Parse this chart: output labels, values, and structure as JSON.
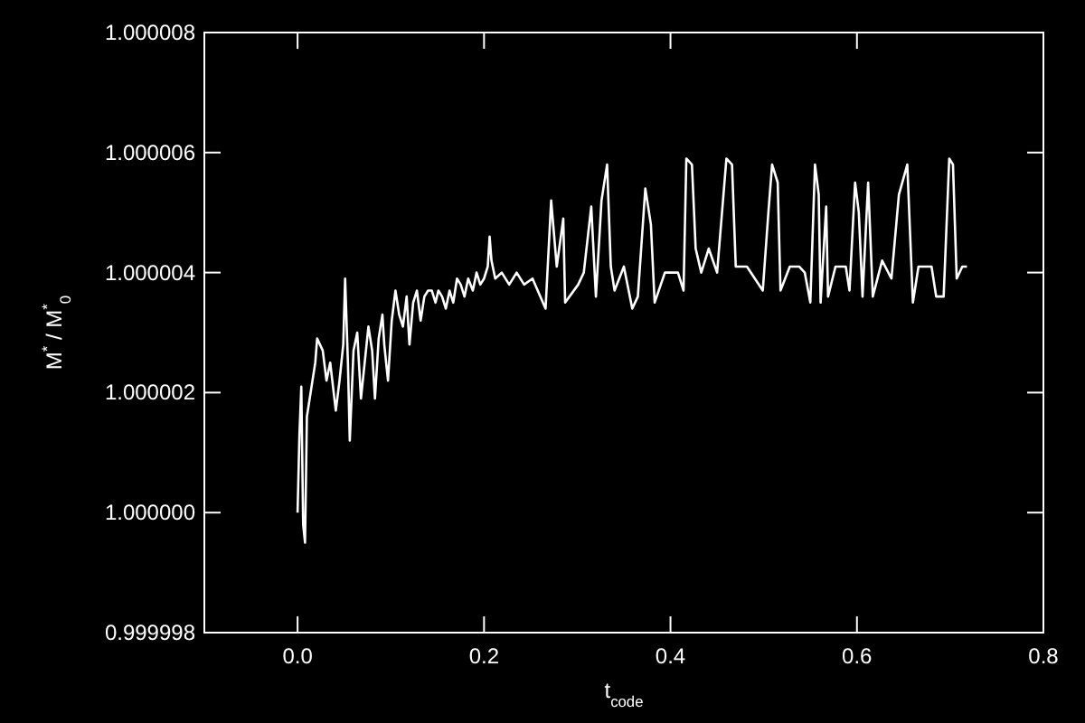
{
  "chart_data": {
    "type": "line",
    "xlabel": "t$_{code}$",
    "ylabel": "M$^{*}$ / M$^{*}$$_{0}$",
    "xlim": [
      -0.1,
      0.8
    ],
    "xticks": [
      {
        "value": 0,
        "label": "0.0"
      },
      0.2,
      0.4,
      0.6,
      {
        "value": 0.8,
        "label": "0.8"
      }
    ],
    "ylim": [
      0.999998,
      1.000008
    ],
    "yticks": [
      {
        "value": 0.999998,
        "label": "0.999998"
      },
      {
        "value": 1,
        "label": "1.000000"
      },
      {
        "value": 1.000002,
        "label": "1.000002"
      },
      {
        "value": 1.000004,
        "label": "1.000004"
      },
      {
        "value": 1.000006,
        "label": "1.000006"
      },
      {
        "value": 1.000008,
        "label": "1.000008"
      }
    ],
    "grid": false,
    "marker": "none",
    "line_style": "solid",
    "series": [
      {
        "color": "#ffffff",
        "x": [
          0,
          0.002,
          0.004,
          0.006,
          0.008,
          0.01,
          0.016,
          0.019,
          0.021,
          0.027,
          0.031,
          0.035,
          0.041,
          0.045,
          0.049,
          0.051,
          0.054,
          0.056,
          0.06,
          0.064,
          0.068,
          0.072,
          0.076,
          0.08,
          0.083,
          0.087,
          0.091,
          0.093,
          0.097,
          0.101,
          0.105,
          0.109,
          0.113,
          0.117,
          0.12,
          0.124,
          0.128,
          0.132,
          0.136,
          0.14,
          0.144,
          0.148,
          0.151,
          0.155,
          0.159,
          0.163,
          0.167,
          0.171,
          0.175,
          0.179,
          0.183,
          0.188,
          0.192,
          0.196,
          0.2,
          0.204,
          0.206,
          0.208,
          0.212,
          0.219,
          0.227,
          0.235,
          0.243,
          0.252,
          0.266,
          0.272,
          0.278,
          0.285,
          0.287,
          0.301,
          0.307,
          0.315,
          0.32,
          0.326,
          0.332,
          0.336,
          0.34,
          0.35,
          0.359,
          0.365,
          0.373,
          0.379,
          0.383,
          0.394,
          0.408,
          0.414,
          0.417,
          0.423,
          0.427,
          0.433,
          0.441,
          0.45,
          0.46,
          0.466,
          0.47,
          0.482,
          0.499,
          0.505,
          0.509,
          0.515,
          0.518,
          0.528,
          0.538,
          0.544,
          0.55,
          0.555,
          0.559,
          0.561,
          0.567,
          0.569,
          0.577,
          0.588,
          0.592,
          0.598,
          0.602,
          0.606,
          0.612,
          0.617,
          0.627,
          0.637,
          0.645,
          0.654,
          0.66,
          0.666,
          0.68,
          0.685,
          0.693,
          0.699,
          0.703,
          0.707,
          0.713,
          0.718
        ],
        "values": [
          1.0,
          1.0000013,
          1.0000021,
          0.9999998,
          0.9999995,
          1.0000016,
          1.0000022,
          1.0000025,
          1.0000029,
          1.0000027,
          1.0000022,
          1.0000025,
          1.0000017,
          1.0000022,
          1.0000028,
          1.0000039,
          1.0000025,
          1.0000012,
          1.0000027,
          1.000003,
          1.0000019,
          1.0000025,
          1.0000031,
          1.0000027,
          1.0000019,
          1.0000029,
          1.0000033,
          1.0000028,
          1.0000022,
          1.0000032,
          1.0000037,
          1.0000033,
          1.0000031,
          1.0000036,
          1.0000028,
          1.0000035,
          1.0000037,
          1.0000032,
          1.0000036,
          1.0000037,
          1.0000037,
          1.0000035,
          1.0000037,
          1.0000036,
          1.0000034,
          1.0000037,
          1.0000035,
          1.0000039,
          1.0000038,
          1.0000036,
          1.0000039,
          1.0000037,
          1.000004,
          1.0000038,
          1.0000039,
          1.0000041,
          1.0000046,
          1.0000042,
          1.0000039,
          1.000004,
          1.0000038,
          1.000004,
          1.0000038,
          1.0000039,
          1.0000034,
          1.0000052,
          1.0000041,
          1.0000049,
          1.0000035,
          1.0000038,
          1.000004,
          1.0000051,
          1.0000036,
          1.0000052,
          1.0000058,
          1.0000041,
          1.0000037,
          1.0000041,
          1.0000034,
          1.0000036,
          1.0000054,
          1.0000048,
          1.0000035,
          1.000004,
          1.000004,
          1.0000037,
          1.0000059,
          1.0000058,
          1.0000044,
          1.000004,
          1.0000044,
          1.000004,
          1.0000059,
          1.0000058,
          1.0000041,
          1.0000041,
          1.0000037,
          1.000005,
          1.0000058,
          1.0000055,
          1.0000037,
          1.0000041,
          1.0000041,
          1.000004,
          1.0000035,
          1.0000058,
          1.0000053,
          1.0000035,
          1.0000051,
          1.0000036,
          1.0000041,
          1.0000041,
          1.0000037,
          1.0000055,
          1.000005,
          1.0000036,
          1.0000055,
          1.0000036,
          1.0000042,
          1.0000039,
          1.0000053,
          1.0000058,
          1.0000035,
          1.0000041,
          1.0000041,
          1.0000036,
          1.0000036,
          1.0000059,
          1.0000058,
          1.0000039,
          1.0000041,
          1.0000041
        ]
      }
    ]
  }
}
